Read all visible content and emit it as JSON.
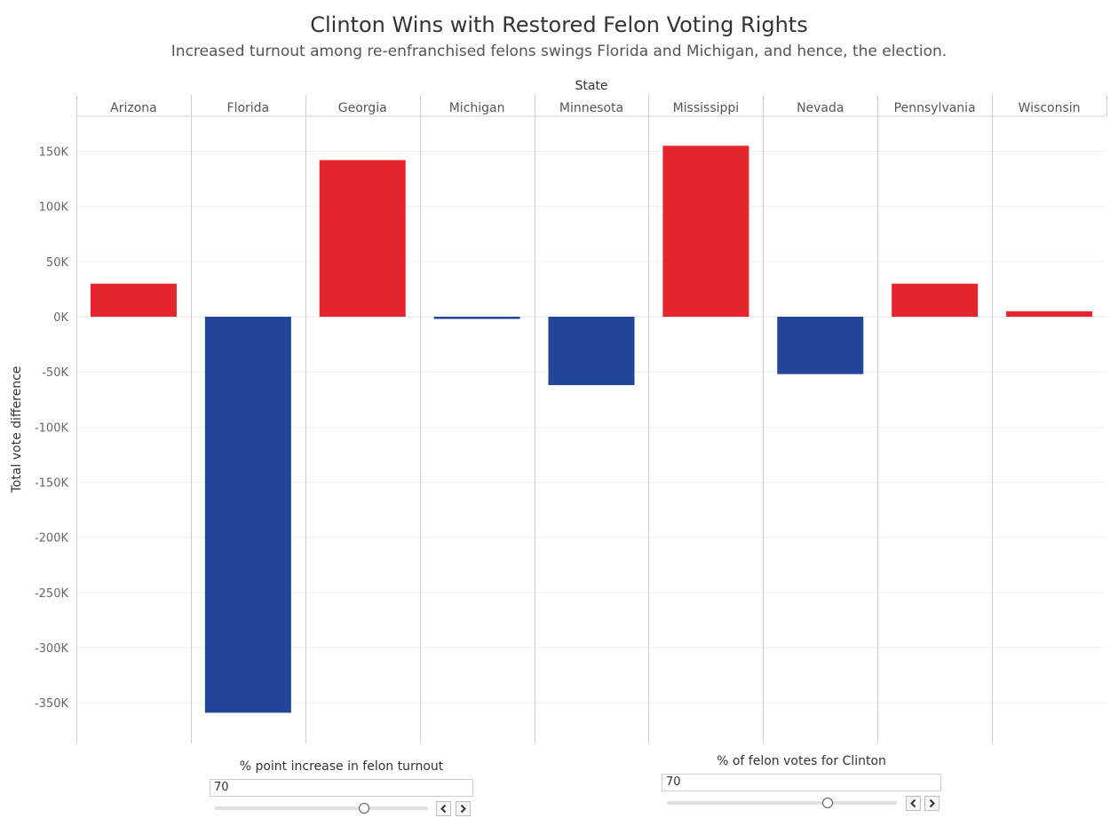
{
  "title": "Clinton Wins with Restored Felon Voting Rights",
  "subtitle": "Increased turnout among re-enfranchised felons swings Florida and Michigan, and hence, the election.",
  "colors": {
    "positive": "#e4252c",
    "negative": "#22459a",
    "grid": "#efefef",
    "divider": "#cfcfcf"
  },
  "chart_data": {
    "type": "bar",
    "column_header": "State",
    "categories": [
      "Arizona",
      "Florida",
      "Georgia",
      "Michigan",
      "Minnesota",
      "Mississippi",
      "Nevada",
      "Pennsylvania",
      "Wisconsin"
    ],
    "values": [
      30000,
      -359000,
      142000,
      -2000,
      -62000,
      155000,
      -52000,
      30000,
      5000
    ],
    "ylabel": "Total vote difference",
    "ylim": [
      -385000,
      190000
    ],
    "yticks": [
      150000,
      100000,
      50000,
      0,
      -50000,
      -100000,
      -150000,
      -200000,
      -250000,
      -300000,
      -350000
    ],
    "ytick_labels": [
      "150K",
      "100K",
      "50K",
      "0K",
      "-50K",
      "-100K",
      "-150K",
      "-200K",
      "-250K",
      "-300K",
      "-350K"
    ]
  },
  "controls": {
    "turnout": {
      "label": "% point increase in felon turnout",
      "value": "70",
      "position": 0.7
    },
    "clinton_share": {
      "label": "% of felon votes for Clinton",
      "value": "70",
      "position": 0.7
    }
  },
  "icons": {
    "prev": "chevron-left-icon",
    "next": "chevron-right-icon"
  }
}
